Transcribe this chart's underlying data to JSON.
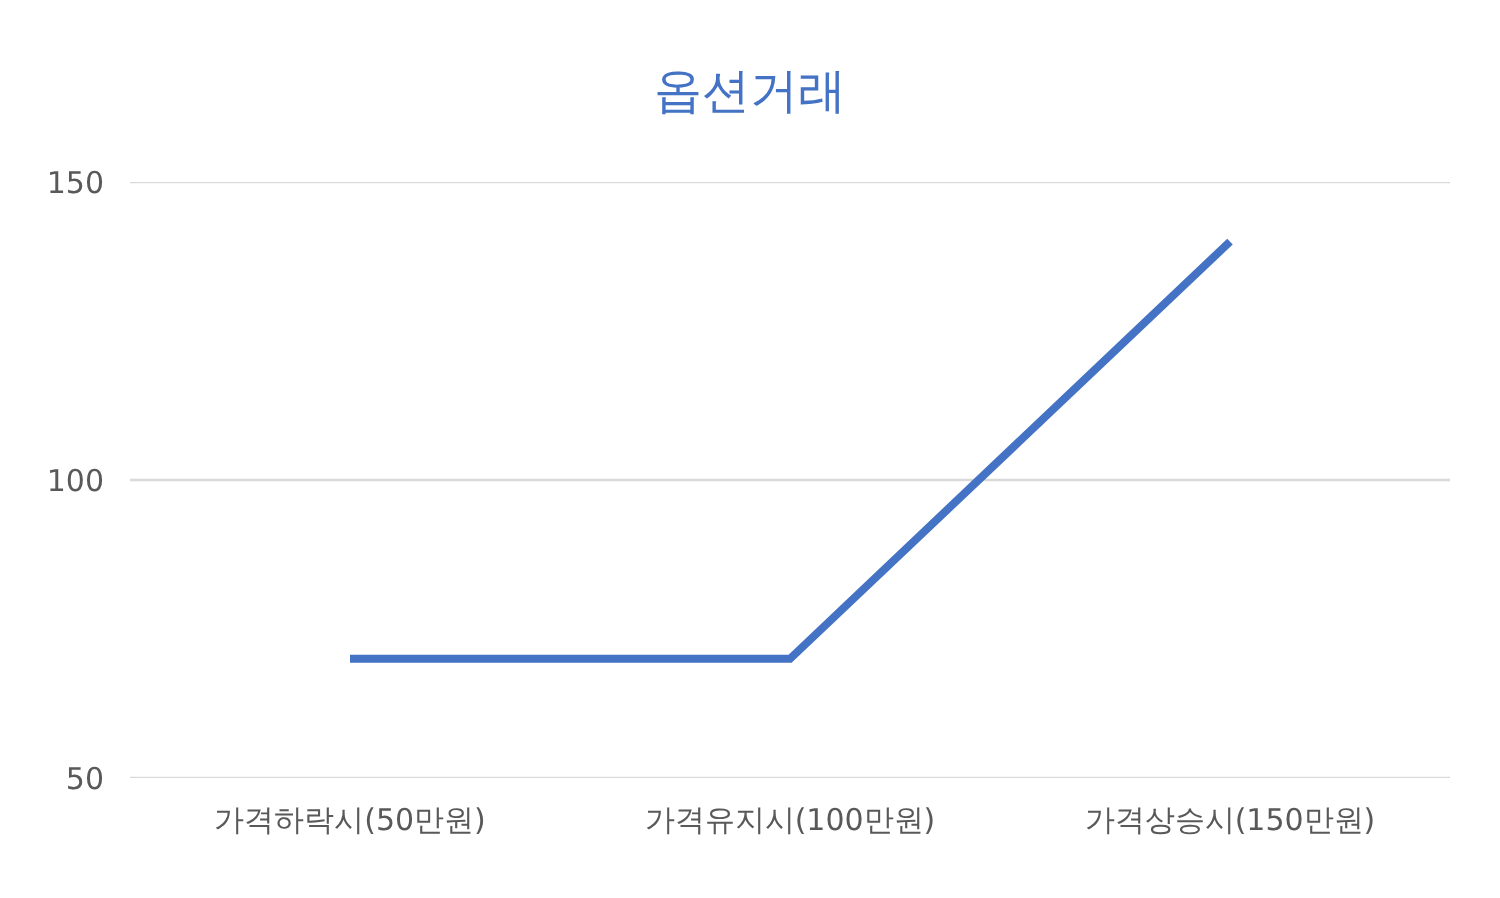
{
  "chart_data": {
    "type": "line",
    "title": "옵션거래",
    "categories": [
      "가격하락시(50만원)",
      "가격유지시(100만원)",
      "가격상승시(150만원)"
    ],
    "series": [
      {
        "color": "#4472c4",
        "values": [
          70,
          70,
          140
        ]
      }
    ],
    "ylim": [
      50,
      150
    ],
    "yticks": [
      50,
      100,
      150
    ],
    "grid": "y",
    "marker": "none",
    "line_style": "solid"
  }
}
